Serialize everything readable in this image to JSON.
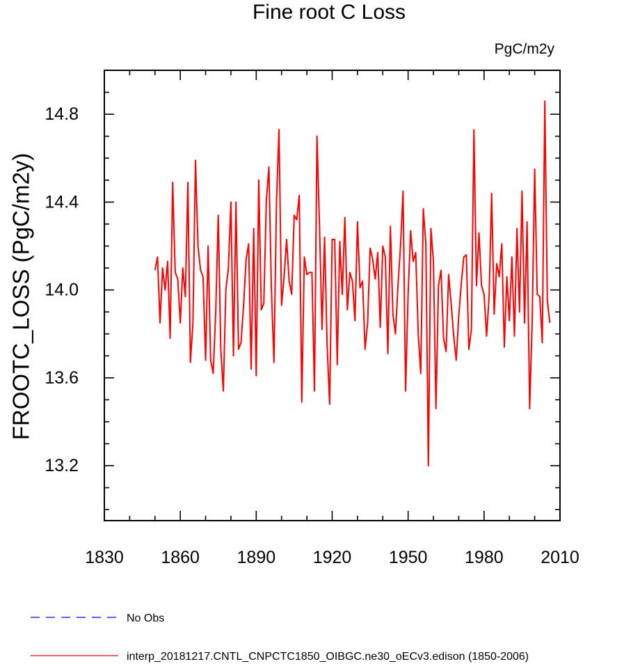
{
  "chart_data": {
    "type": "line",
    "title": "Fine root C Loss",
    "units_label": "PgC/m2y",
    "xlabel": "",
    "ylabel": "FROOTC_LOSS  (PgC/m2y)",
    "xlim": [
      1830,
      2010
    ],
    "ylim": [
      12.95,
      15.0
    ],
    "x_ticks": [
      1830,
      1860,
      1890,
      1920,
      1950,
      1980,
      2010
    ],
    "x_tick_labels": [
      "1830",
      "1860",
      "1890",
      "1920",
      "1950",
      "1980",
      "2010"
    ],
    "y_ticks": [
      13.2,
      13.6,
      14.0,
      14.4,
      14.8
    ],
    "y_tick_labels": [
      "13.2",
      "13.6",
      "14.0",
      "14.4",
      "14.8"
    ],
    "legend": [
      {
        "name": "No Obs",
        "color": "#0000ff",
        "style": "dashed"
      },
      {
        "name": "interp_20181217.CNTL_CNPCTC1850_OIBGC.ne30_oECv3.edison (1850-2006)",
        "color": "#ff0000",
        "style": "solid"
      }
    ],
    "series": [
      {
        "name": "interp_20181217.CNTL_CNPCTC1850_OIBGC.ne30_oECv3.edison (1850-2006)",
        "color": "#ff0000",
        "x_start": 1850,
        "x_step": 1,
        "values": [
          14.09,
          14.15,
          13.85,
          14.1,
          14.0,
          14.13,
          13.78,
          14.49,
          14.08,
          14.05,
          13.85,
          14.1,
          13.97,
          14.49,
          13.67,
          13.85,
          14.59,
          14.2,
          14.09,
          14.06,
          13.68,
          14.2,
          13.68,
          13.62,
          13.9,
          14.34,
          13.73,
          13.54,
          14.0,
          14.1,
          14.4,
          13.7,
          14.4,
          13.73,
          13.76,
          13.93,
          14.14,
          14.21,
          13.64,
          14.28,
          13.61,
          14.5,
          13.91,
          13.94,
          14.41,
          14.56,
          14.0,
          13.67,
          14.4,
          14.73,
          13.93,
          14.06,
          14.23,
          14.04,
          13.98,
          14.34,
          14.32,
          14.43,
          13.49,
          14.15,
          14.07,
          14.08,
          14.08,
          13.54,
          14.7,
          14.29,
          13.82,
          14.24,
          13.75,
          13.48,
          14.23,
          14.23,
          13.66,
          14.22,
          13.98,
          14.33,
          13.91,
          14.08,
          14.04,
          13.86,
          14.31,
          14.01,
          14.04,
          13.73,
          13.85,
          14.19,
          14.14,
          14.05,
          14.17,
          13.83,
          14.2,
          14.15,
          13.71,
          14.29,
          13.89,
          13.8,
          14.02,
          14.2,
          14.45,
          13.54,
          13.98,
          14.27,
          14.13,
          14.17,
          13.8,
          13.62,
          14.37,
          14.21,
          13.2,
          14.28,
          14.13,
          13.46,
          14.02,
          14.09,
          13.78,
          13.72,
          14.07,
          13.94,
          13.79,
          13.68,
          13.88,
          14.03,
          14.15,
          14.16,
          13.73,
          13.82,
          14.73,
          14.02,
          14.26,
          14.02,
          13.98,
          13.79,
          13.97,
          14.44,
          13.89,
          14.12,
          14.06,
          14.21,
          13.74,
          14.06,
          13.86,
          14.15,
          13.79,
          14.28,
          13.9,
          14.45,
          13.85,
          14.31,
          13.46,
          13.85,
          14.55,
          13.98,
          13.97,
          13.76,
          14.86,
          13.95,
          13.85
        ]
      }
    ]
  }
}
